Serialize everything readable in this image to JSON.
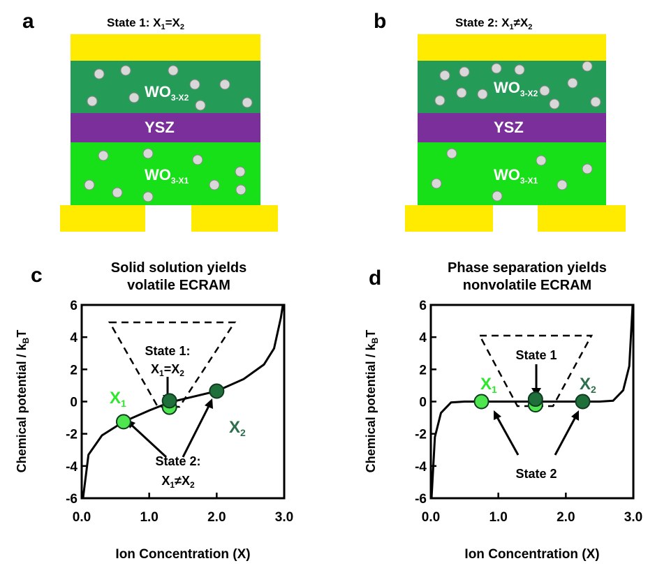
{
  "panels": {
    "a": {
      "letter": "a",
      "title": "State 1: X",
      "title_sub1": "1",
      "title_mid": "=X",
      "title_sub2": "2",
      "layers": {
        "top_oxide": "WO",
        "top_oxide_sub": "3-X2",
        "electrolyte": "YSZ",
        "bottom_oxide": "WO",
        "bottom_oxide_sub": "3-X1"
      }
    },
    "b": {
      "letter": "b",
      "title": "State 2: X",
      "title_sub1": "1",
      "title_mid": "≠X",
      "title_sub2": "2",
      "layers": {
        "top_oxide": "WO",
        "top_oxide_sub": "3-X2",
        "electrolyte": "YSZ",
        "bottom_oxide": "WO",
        "bottom_oxide_sub": "3-X1"
      }
    },
    "c": {
      "letter": "c",
      "title_line1": "Solid solution yields",
      "title_line2": "volatile ECRAM",
      "ylabel": "Chemical potential / k",
      "ylabel_sub": "B",
      "ylabel_end": "T",
      "xlabel": "Ion Concentration (X)",
      "box_label_line1": "State 1:",
      "box_label_line2_a": "X",
      "box_label_line2_sub1": "1",
      "box_label_line2_b": "=X",
      "box_label_line2_sub2": "2",
      "state2_line1": "State 2:",
      "state2_line2_a": "X",
      "state2_line2_sub1": "1",
      "state2_line2_b": "≠X",
      "state2_line2_sub2": "2",
      "x1_label": "X",
      "x1_sub": "1",
      "x2_label": "X",
      "x2_sub": "2"
    },
    "d": {
      "letter": "d",
      "title_line1": "Phase separation yields",
      "title_line2": "nonvolatile ECRAM",
      "ylabel": "Chemical potential / k",
      "ylabel_sub": "B",
      "ylabel_end": "T",
      "xlabel": "Ion Concentration (X)",
      "box_label": "State 1",
      "state2_label": "State 2",
      "x1_label": "X",
      "x1_sub": "1",
      "x2_label": "X",
      "x2_sub": "2"
    }
  },
  "chart_data": [
    {
      "type": "line",
      "panel": "c",
      "title": "Solid solution yields volatile ECRAM",
      "xlabel": "Ion Concentration (X)",
      "ylabel": "Chemical potential / kBT",
      "xlim": [
        0,
        3
      ],
      "ylim": [
        -6,
        6
      ],
      "xticks": [
        "0.0",
        "1.0",
        "2.0",
        "3.0"
      ],
      "yticks": [
        "6",
        "4",
        "2",
        "0",
        "-2",
        "-4",
        "-6"
      ],
      "series": [
        {
          "values": [
            {
              "x": 0.02,
              "y": -6
            },
            {
              "x": 0.1,
              "y": -3.3
            },
            {
              "x": 0.3,
              "y": -2.1
            },
            {
              "x": 0.62,
              "y": -1.25
            },
            {
              "x": 1.0,
              "y": -0.55
            },
            {
              "x": 1.3,
              "y": -0.05
            },
            {
              "x": 1.6,
              "y": 0.25
            },
            {
              "x": 2.0,
              "y": 0.65
            },
            {
              "x": 2.4,
              "y": 1.4
            },
            {
              "x": 2.7,
              "y": 2.3
            },
            {
              "x": 2.85,
              "y": 3.3
            },
            {
              "x": 2.95,
              "y": 5.2
            },
            {
              "x": 2.98,
              "y": 6
            }
          ]
        }
      ],
      "points": [
        {
          "x": 0.62,
          "y": -1.25,
          "color": "#4ee64e"
        },
        {
          "x": 1.3,
          "y": -0.35,
          "color": "#4ee64e"
        },
        {
          "x": 1.3,
          "y": 0.05,
          "color": "#1f6f3a"
        },
        {
          "x": 2.0,
          "y": 0.65,
          "color": "#1f6f3a"
        }
      ]
    },
    {
      "type": "line",
      "panel": "d",
      "title": "Phase separation yields nonvolatile ECRAM",
      "xlabel": "Ion Concentration (X)",
      "ylabel": "Chemical potential / kBT",
      "xlim": [
        0,
        3
      ],
      "ylim": [
        -6,
        6
      ],
      "xticks": [
        "0.0",
        "1.0",
        "2.0",
        "3.0"
      ],
      "yticks": [
        "6",
        "4",
        "2",
        "0",
        "-2",
        "-4",
        "-6"
      ],
      "series": [
        {
          "values": [
            {
              "x": 0.01,
              "y": -6
            },
            {
              "x": 0.06,
              "y": -2.2
            },
            {
              "x": 0.15,
              "y": -0.7
            },
            {
              "x": 0.3,
              "y": -0.05
            },
            {
              "x": 0.5,
              "y": 0
            },
            {
              "x": 1.5,
              "y": 0
            },
            {
              "x": 2.5,
              "y": 0
            },
            {
              "x": 2.7,
              "y": 0.05
            },
            {
              "x": 2.85,
              "y": 0.7
            },
            {
              "x": 2.94,
              "y": 2.2
            },
            {
              "x": 2.99,
              "y": 6
            }
          ]
        }
      ],
      "points": [
        {
          "x": 0.75,
          "y": 0,
          "color": "#4ee64e"
        },
        {
          "x": 1.55,
          "y": -0.2,
          "color": "#4ee64e"
        },
        {
          "x": 1.55,
          "y": 0.15,
          "color": "#1f6f3a"
        },
        {
          "x": 2.25,
          "y": 0,
          "color": "#1f6f3a"
        }
      ]
    }
  ],
  "colors": {
    "electrode": "#ffeb00",
    "dark_oxide": "#249b57",
    "light_oxide": "#18e018",
    "electrolyte": "#7a2f9a",
    "ion": "#d8d8d8",
    "x1": "#2ee62e",
    "x2": "#2e6e4e"
  }
}
